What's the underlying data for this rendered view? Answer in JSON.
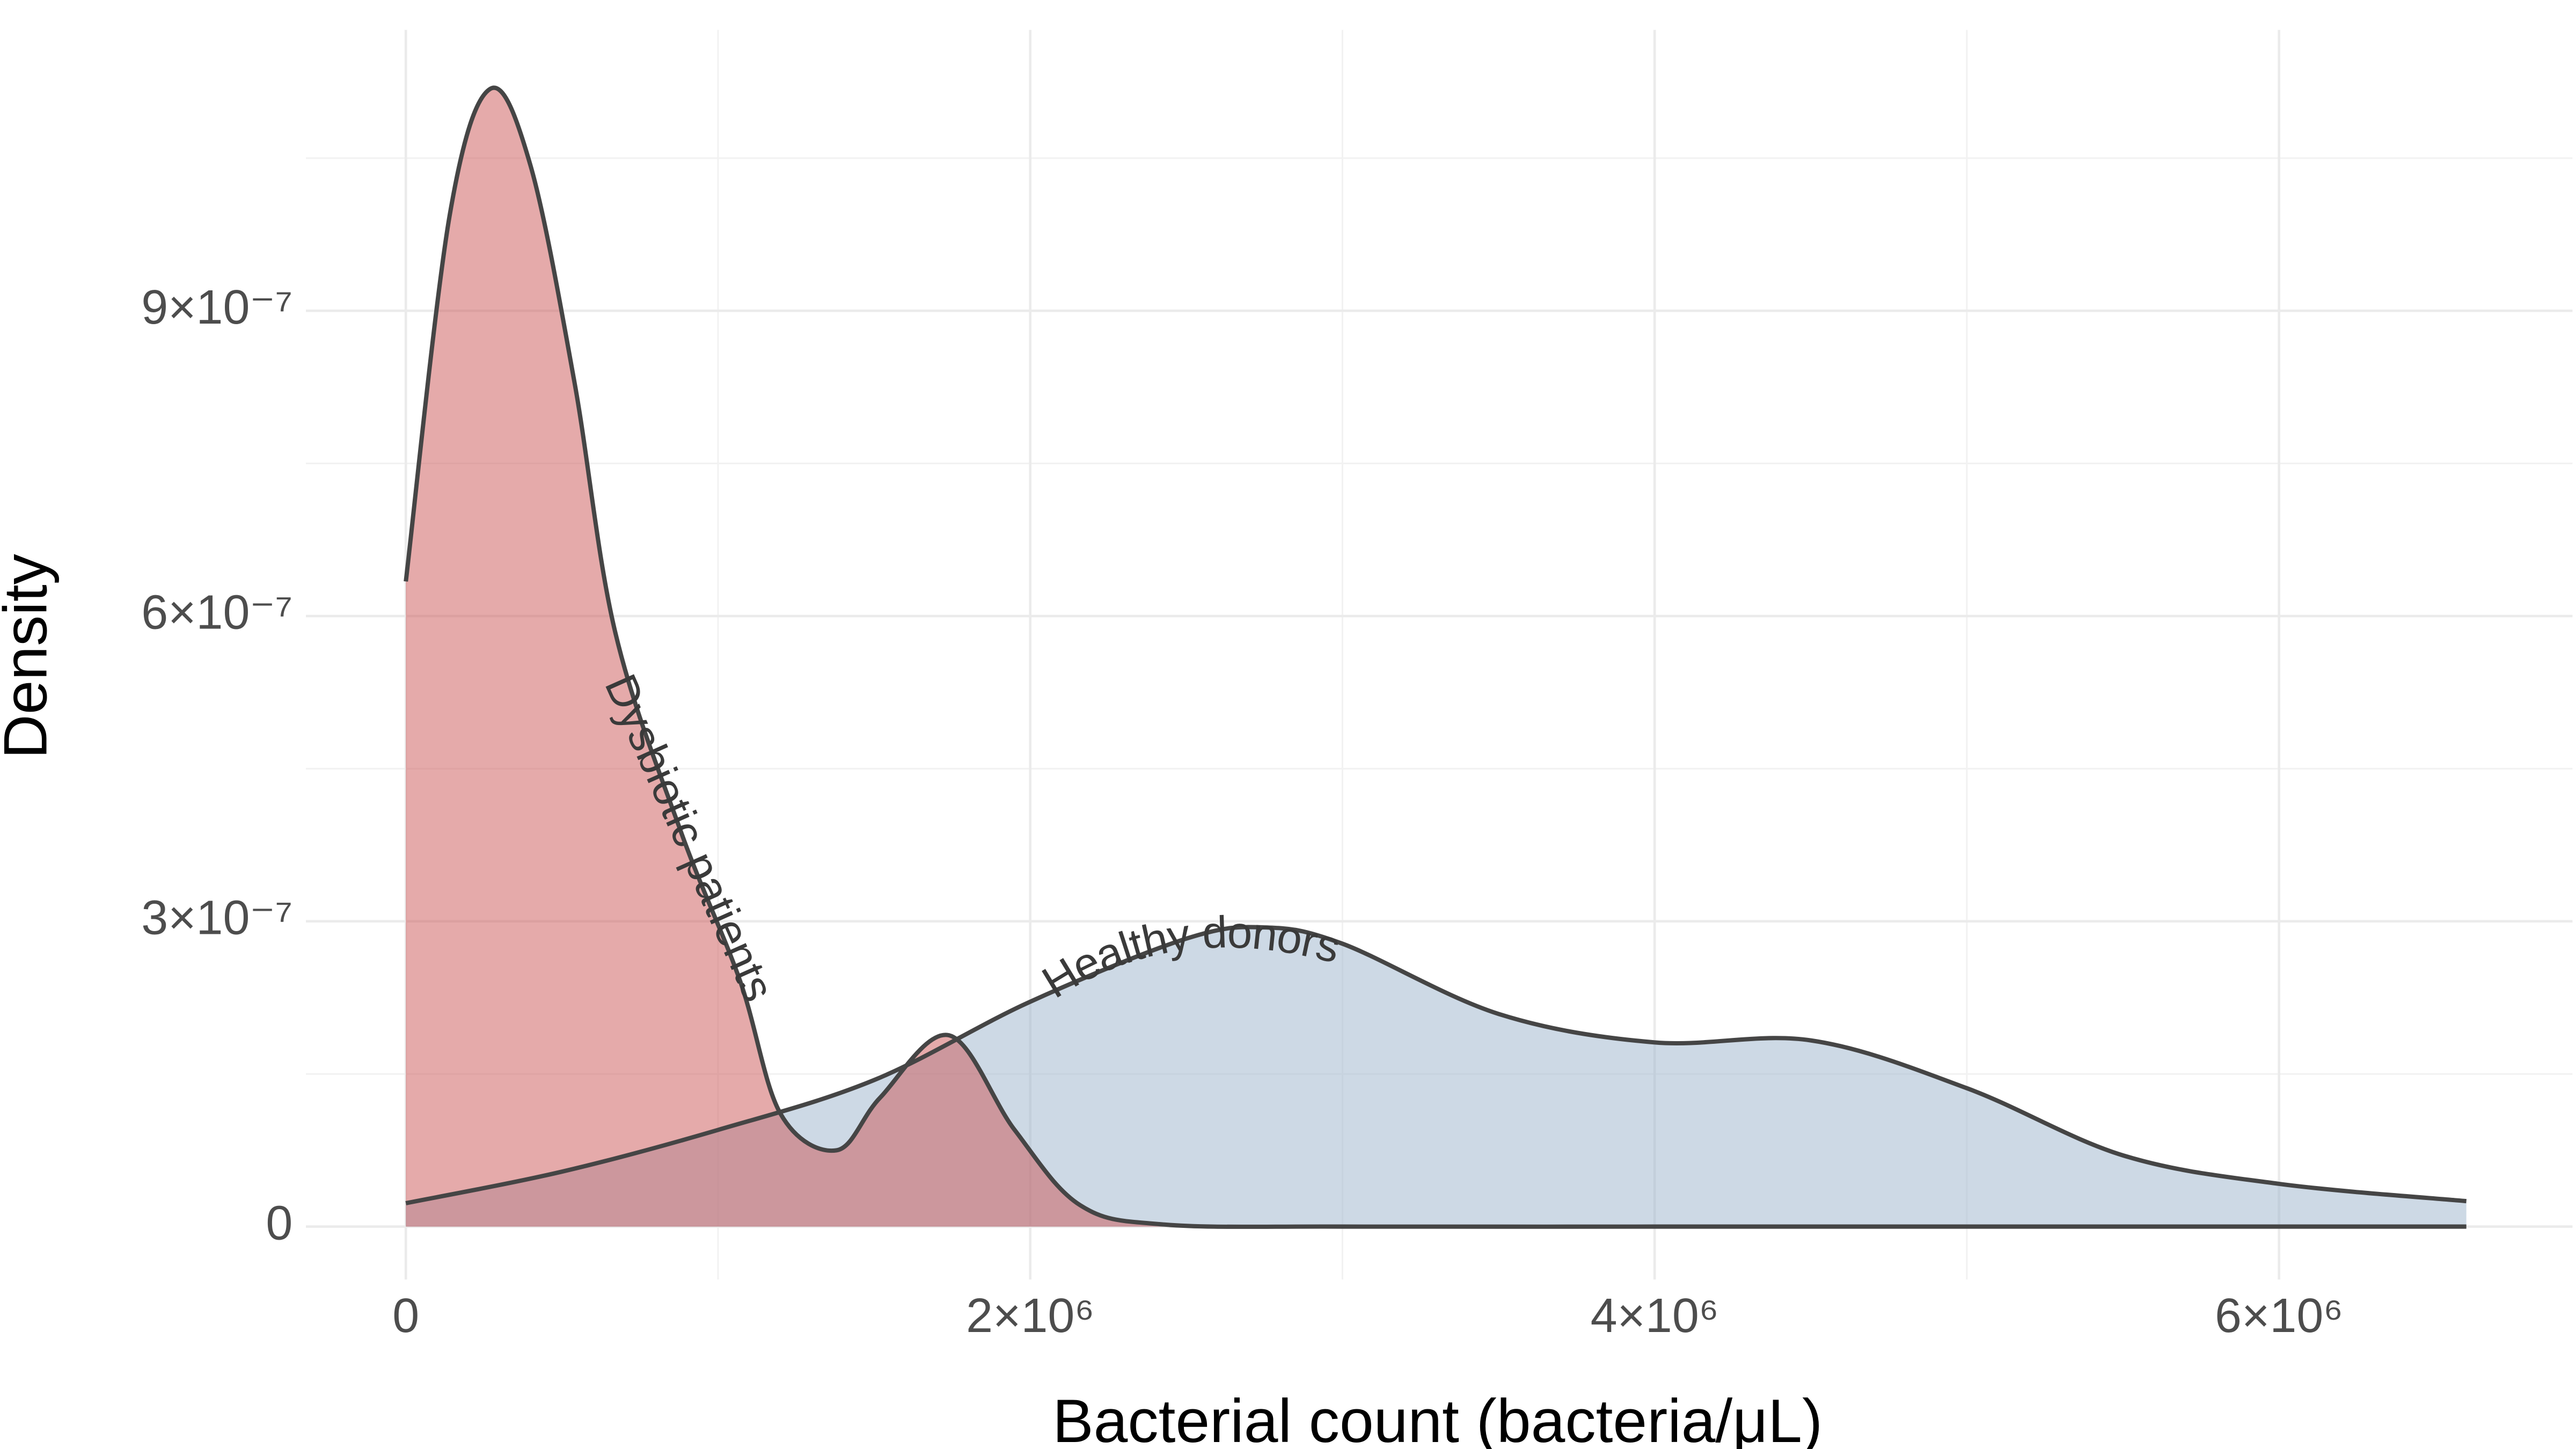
{
  "chart_data": {
    "type": "density",
    "x_label": "Bacterial count (bacteria/μL)",
    "y_label": "Density",
    "xlim": [
      -320000,
      6940000
    ],
    "ylim": [
      -5.2e-08,
      1.176e-06
    ],
    "xticks": [
      {
        "value": 0,
        "label": "0"
      },
      {
        "value": 2000000,
        "label": "2×10⁶"
      },
      {
        "value": 4000000,
        "label": "4×10⁶"
      },
      {
        "value": 6000000,
        "label": "6×10⁶"
      }
    ],
    "yticks": [
      {
        "value": 0,
        "label": "0"
      },
      {
        "value": 3e-07,
        "label": "3×10⁻⁷"
      },
      {
        "value": 6e-07,
        "label": "6×10⁻⁷"
      },
      {
        "value": 9e-07,
        "label": "9×10⁻⁷"
      }
    ],
    "grid": true,
    "series": [
      {
        "name": "Healthy donors",
        "color": "#9cb3cc",
        "x": [
          0,
          500000,
          1000000,
          1500000,
          2000000,
          2500000,
          2750000,
          3000000,
          3500000,
          4000000,
          4500000,
          5000000,
          5500000,
          6000000,
          6600000
        ],
        "values": [
          2.3e-08,
          5.4e-08,
          9.5e-08,
          1.44e-07,
          2.21e-07,
          2.83e-07,
          2.94e-07,
          2.78e-07,
          2.09e-07,
          1.81e-07,
          1.83e-07,
          1.36e-07,
          7e-08,
          4.2e-08,
          2.5e-08
        ]
      },
      {
        "name": "Dysbiotic patients",
        "color": "#cc5555",
        "x": [
          0,
          140000,
          270000,
          400000,
          540000,
          670000,
          880000,
          1070000,
          1200000,
          1380000,
          1520000,
          1740000,
          1950000,
          2160000,
          2430000,
          3000000,
          4000000,
          5000000,
          6000000,
          6600000
        ],
        "values": [
          6.34e-07,
          9.93e-07,
          1.118e-06,
          1.042e-06,
          8.3e-07,
          5.85e-07,
          3.89e-07,
          2.42e-07,
          1.11e-07,
          7.5e-08,
          1.27e-07,
          1.88e-07,
          9.5e-08,
          2.1e-08,
          2e-09,
          0,
          0,
          0,
          0,
          0
        ]
      }
    ]
  }
}
